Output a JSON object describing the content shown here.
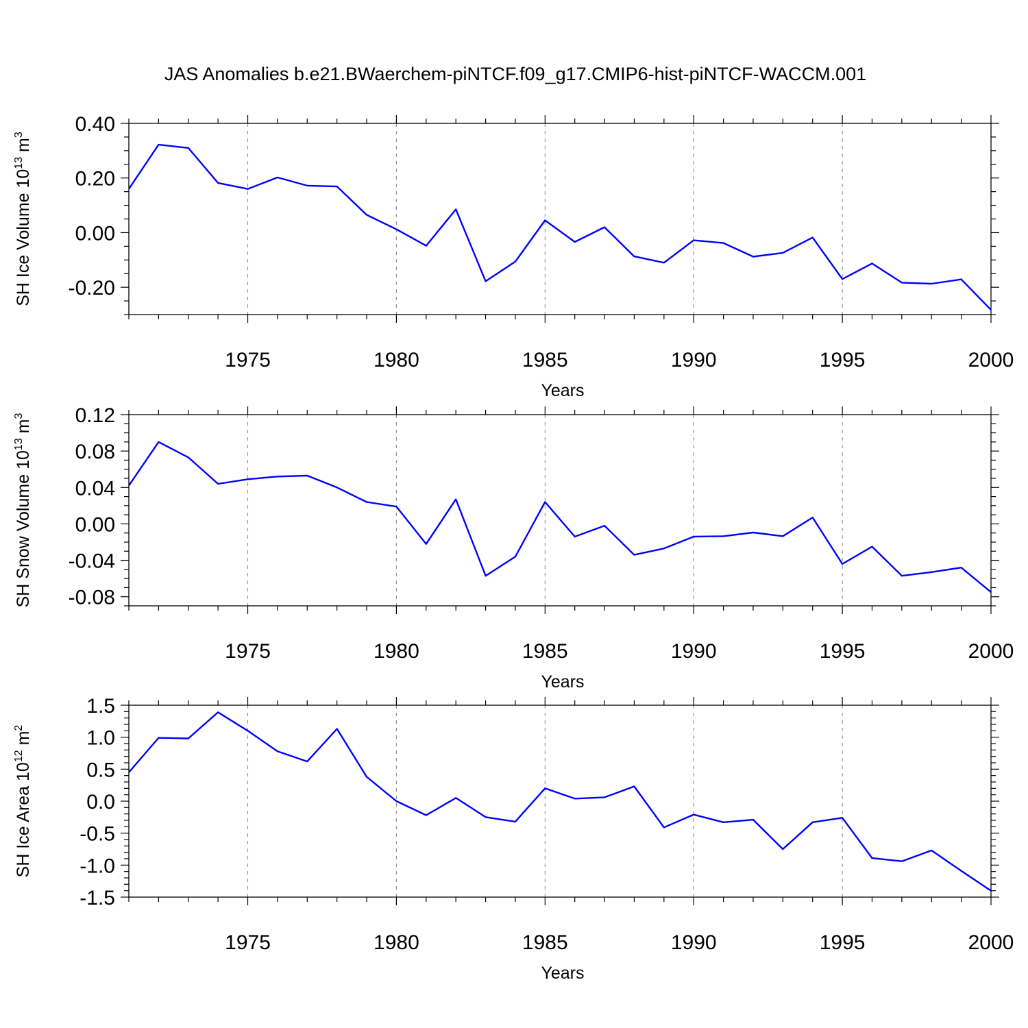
{
  "title": "JAS Anomalies b.e21.BWaerchem-piNTCF.f09_g17.CMIP6-hist-piNTCF-WACCM.001",
  "line_color": "#0000ff",
  "chart_data": [
    {
      "type": "line",
      "ylabel": "SH Ice Volume 10",
      "ylabel_exp": "13",
      "ylabel_unit": " m",
      "ylabel_unit_exp": "3",
      "xlabel": "Years",
      "xlim": [
        1971,
        2000
      ],
      "ylim": [
        -0.3,
        0.4
      ],
      "yticks": [
        -0.2,
        0.0,
        0.2,
        0.4
      ],
      "ytick_labels": [
        "-0.20",
        "0.00",
        "0.20",
        "0.40"
      ],
      "yminor_step": 0.05,
      "xticks": [
        1975,
        1980,
        1985,
        1990,
        1995,
        2000
      ],
      "xtick_labels": [
        "1975",
        "1980",
        "1985",
        "1990",
        "1995",
        "2000"
      ],
      "grid_x": true,
      "x": [
        1971,
        1972,
        1973,
        1974,
        1975,
        1976,
        1977,
        1978,
        1979,
        1980,
        1981,
        1982,
        1983,
        1984,
        1985,
        1986,
        1987,
        1988,
        1989,
        1990,
        1991,
        1992,
        1993,
        1994,
        1995,
        1996,
        1997,
        1998,
        1999,
        2000
      ],
      "values": [
        0.16,
        0.322,
        0.31,
        0.182,
        0.16,
        0.202,
        0.172,
        0.169,
        0.065,
        0.012,
        -0.048,
        0.085,
        -0.178,
        -0.106,
        0.045,
        -0.034,
        0.02,
        -0.087,
        -0.11,
        -0.028,
        -0.038,
        -0.088,
        -0.074,
        -0.018,
        -0.17,
        -0.113,
        -0.183,
        -0.187,
        -0.171,
        -0.283
      ]
    },
    {
      "type": "line",
      "ylabel": "SH Snow Volume 10",
      "ylabel_exp": "13",
      "ylabel_unit": " m",
      "ylabel_unit_exp": "3",
      "xlabel": "Years",
      "xlim": [
        1971,
        2000
      ],
      "ylim": [
        -0.09,
        0.12
      ],
      "yticks": [
        -0.08,
        -0.04,
        0.0,
        0.04,
        0.08,
        0.12
      ],
      "ytick_labels": [
        "-0.08",
        "-0.04",
        "0.00",
        "0.04",
        "0.08",
        "0.12"
      ],
      "yminor_step": 0.01,
      "xticks": [
        1975,
        1980,
        1985,
        1990,
        1995,
        2000
      ],
      "xtick_labels": [
        "1975",
        "1980",
        "1985",
        "1990",
        "1995",
        "2000"
      ],
      "grid_x": true,
      "x": [
        1971,
        1972,
        1973,
        1974,
        1975,
        1976,
        1977,
        1978,
        1979,
        1980,
        1981,
        1982,
        1983,
        1984,
        1985,
        1986,
        1987,
        1988,
        1989,
        1990,
        1991,
        1992,
        1993,
        1994,
        1995,
        1996,
        1997,
        1998,
        1999,
        2000
      ],
      "values": [
        0.042,
        0.09,
        0.073,
        0.044,
        0.049,
        0.052,
        0.053,
        0.04,
        0.024,
        0.019,
        -0.022,
        0.027,
        -0.057,
        -0.036,
        0.024,
        -0.014,
        -0.002,
        -0.034,
        -0.027,
        -0.014,
        -0.0135,
        -0.0095,
        -0.0135,
        0.007,
        -0.044,
        -0.025,
        -0.057,
        -0.053,
        -0.048,
        -0.075
      ]
    },
    {
      "type": "line",
      "ylabel": "SH Ice Area 10",
      "ylabel_exp": "12",
      "ylabel_unit": " m",
      "ylabel_unit_exp": "2",
      "xlabel": "Years",
      "xlim": [
        1971,
        2000
      ],
      "ylim": [
        -1.5,
        1.5
      ],
      "yticks": [
        -1.5,
        -1.0,
        -0.5,
        0.0,
        0.5,
        1.0,
        1.5
      ],
      "ytick_labels": [
        "-1.5",
        "-1.0",
        "-0.5",
        "0.0",
        "0.5",
        "1.0",
        "1.5"
      ],
      "yminor_step": 0.1,
      "xticks": [
        1975,
        1980,
        1985,
        1990,
        1995,
        2000
      ],
      "xtick_labels": [
        "1975",
        "1980",
        "1985",
        "1990",
        "1995",
        "2000"
      ],
      "grid_x": true,
      "x": [
        1971,
        1972,
        1973,
        1974,
        1975,
        1976,
        1977,
        1978,
        1979,
        1980,
        1981,
        1982,
        1983,
        1984,
        1985,
        1986,
        1987,
        1988,
        1989,
        1990,
        1991,
        1992,
        1993,
        1994,
        1995,
        1996,
        1997,
        1998,
        1999,
        2000
      ],
      "values": [
        0.45,
        0.99,
        0.98,
        1.39,
        1.1,
        0.78,
        0.62,
        1.13,
        0.38,
        0.0,
        -0.22,
        0.05,
        -0.25,
        -0.32,
        0.2,
        0.04,
        0.06,
        0.23,
        -0.41,
        -0.21,
        -0.33,
        -0.29,
        -0.75,
        -0.33,
        -0.26,
        -0.89,
        -0.94,
        -0.77,
        -1.09,
        -1.4
      ]
    }
  ]
}
